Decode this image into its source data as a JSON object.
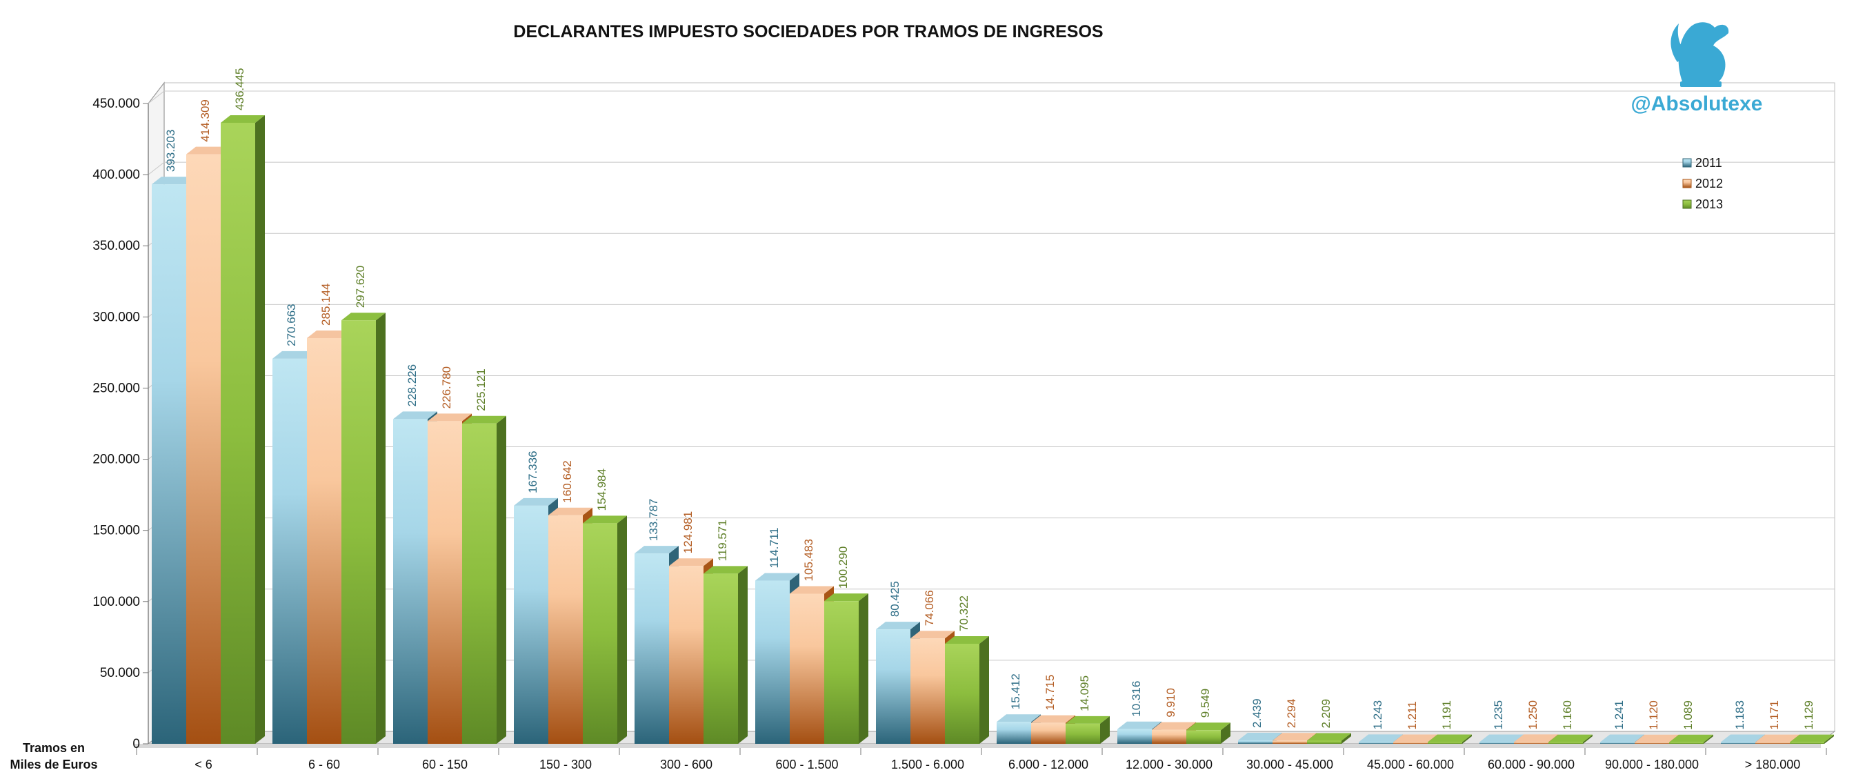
{
  "chart_data": {
    "type": "bar",
    "title": "DECLARANTES IMPUESTO SOCIEDADES POR TRAMOS DE INGRESOS",
    "xlabel": "Tramos en Miles de Euros",
    "xlabel_lines": [
      "Tramos en",
      "Miles de Euros"
    ],
    "ylabel": "",
    "ylim": [
      0,
      450000
    ],
    "yticks": [
      0,
      50000,
      100000,
      150000,
      200000,
      250000,
      300000,
      350000,
      400000,
      450000
    ],
    "ytick_labels": [
      "0",
      "50.000",
      "100.000",
      "150.000",
      "200.000",
      "250.000",
      "300.000",
      "350.000",
      "400.000",
      "450.000"
    ],
    "grid": true,
    "legend_position": "top-right",
    "categories": [
      "< 6",
      "6 - 60",
      "60 - 150",
      "150 - 300",
      "300 - 600",
      "600 - 1.500",
      "1.500 - 6.000",
      "6.000 - 12.000",
      "12.000 - 30.000",
      "30.000 - 45.000",
      "45.000 - 60.000",
      "60.000 - 90.000",
      "90.000 - 180.000",
      "> 180.000"
    ],
    "series": [
      {
        "name": "2011",
        "color": "#5aa7c4",
        "label_color": "#2e6e87",
        "values": [
          393203,
          270663,
          228226,
          167336,
          133787,
          114711,
          80425,
          15412,
          10316,
          2439,
          1243,
          1235,
          1241,
          1183
        ],
        "labels": [
          "393.203",
          "270.663",
          "228.226",
          "167.336",
          "133.787",
          "114.711",
          "80.425",
          "15.412",
          "10.316",
          "2.439",
          "1.243",
          "1.235",
          "1.241",
          "1.183"
        ]
      },
      {
        "name": "2012",
        "color": "#e8935a",
        "label_color": "#b35c22",
        "values": [
          414309,
          285144,
          226780,
          160642,
          124981,
          105483,
          74066,
          14715,
          9910,
          2294,
          1211,
          1250,
          1120,
          1171
        ],
        "labels": [
          "414.309",
          "285.144",
          "226.780",
          "160.642",
          "124.981",
          "105.483",
          "74.066",
          "14.715",
          "9.910",
          "2.294",
          "1.211",
          "1.250",
          "1.120",
          "1.171"
        ]
      },
      {
        "name": "2013",
        "color": "#86b33a",
        "label_color": "#5e7f28",
        "values": [
          436445,
          297620,
          225121,
          154984,
          119571,
          100290,
          70322,
          14095,
          9549,
          2209,
          1191,
          1160,
          1089,
          1129
        ],
        "labels": [
          "436.445",
          "297.620",
          "225.121",
          "154.984",
          "119.571",
          "100.290",
          "70.322",
          "14.095",
          "9.549",
          "2.209",
          "1.191",
          "1.160",
          "1.089",
          "1.129"
        ]
      }
    ]
  },
  "branding": {
    "handle": "@Absolutexe",
    "logo_icon": "griffin-icon",
    "color": "#3aa9d4"
  }
}
